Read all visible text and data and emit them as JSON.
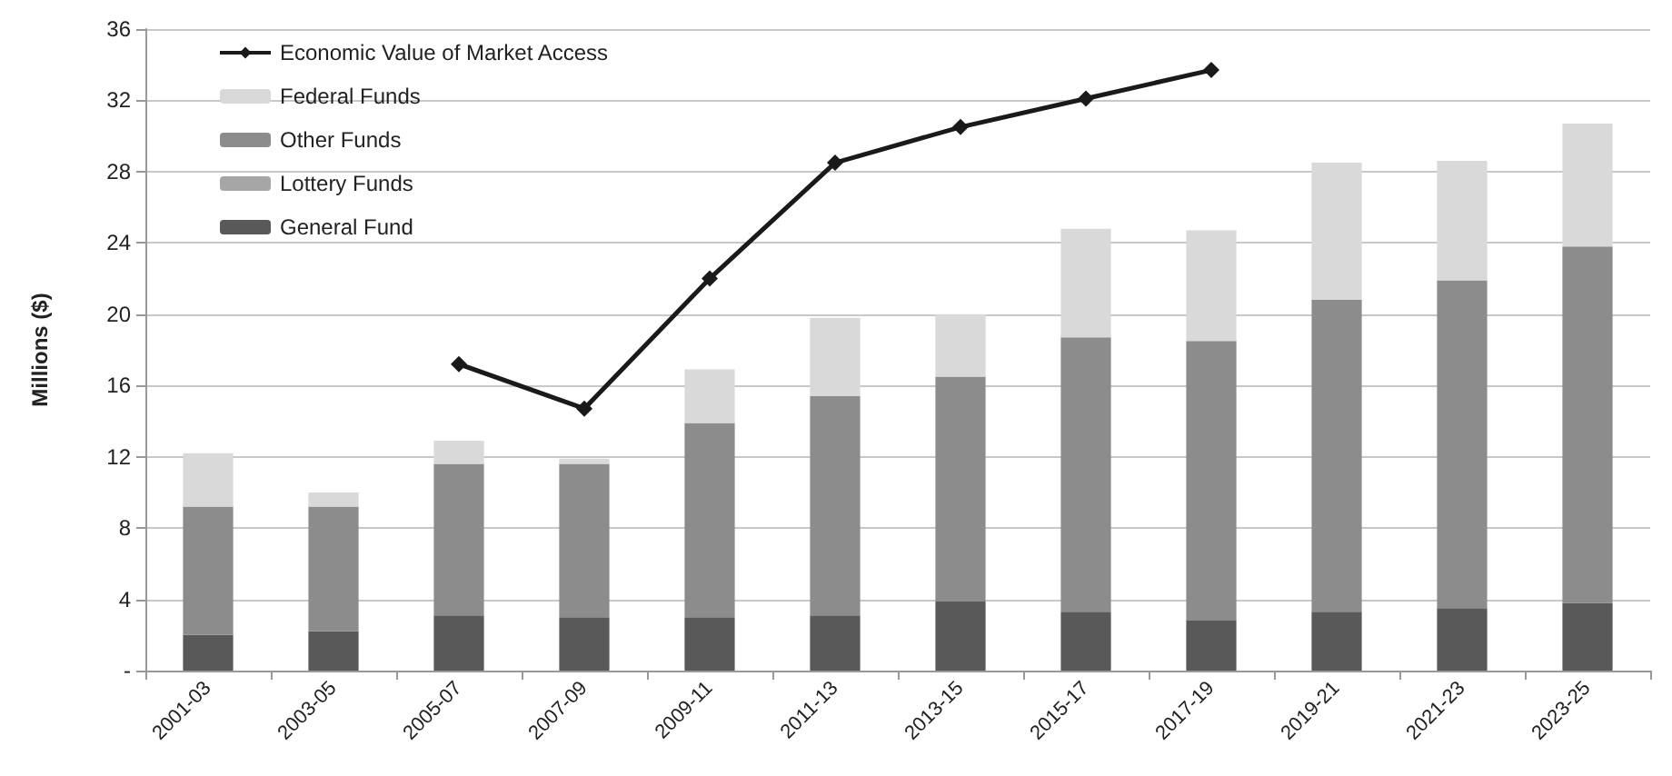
{
  "chart_data": {
    "type": "bar",
    "stacked": true,
    "ylabel": "Millions ($)",
    "categories": [
      "2001-03",
      "2003-05",
      "2005-07",
      "2007-09",
      "2009-11",
      "2011-13",
      "2013-15",
      "2015-17",
      "2017-19",
      "2019-21",
      "2021-23",
      "2023-25"
    ],
    "series": [
      {
        "name": "General Fund",
        "color": "#595959",
        "values": [
          2.0,
          2.2,
          3.1,
          3.0,
          3.0,
          3.1,
          3.9,
          3.3,
          2.8,
          3.3,
          3.5,
          3.8
        ]
      },
      {
        "name": "Lottery Funds",
        "color": "#a6a6a6",
        "values": [
          0,
          0,
          0,
          0,
          0,
          0,
          0,
          0,
          0,
          0,
          0,
          0
        ]
      },
      {
        "name": "Other Funds",
        "color": "#8c8c8c",
        "values": [
          7.2,
          7.0,
          8.5,
          8.6,
          10.9,
          12.3,
          12.6,
          15.4,
          15.7,
          17.5,
          18.4,
          20.0
        ]
      },
      {
        "name": "Federal Funds",
        "color": "#d9d9d9",
        "values": [
          3.0,
          0.8,
          1.3,
          0.3,
          3.0,
          4.4,
          3.5,
          6.1,
          6.2,
          7.7,
          6.7,
          6.9
        ]
      },
      {
        "name": "Economic Value of Market Access",
        "type": "line",
        "color": "#1a1a1a",
        "marker": "diamond",
        "values": [
          null,
          null,
          17.2,
          14.7,
          22.0,
          28.5,
          30.5,
          32.1,
          33.7,
          null,
          null,
          null
        ]
      }
    ],
    "ylim": [
      0,
      36
    ],
    "yticks": [
      {
        "value": 0,
        "label": "-"
      },
      4,
      8,
      12,
      16,
      20,
      24,
      28,
      32,
      36
    ],
    "grid": "y",
    "legend": "top left"
  }
}
